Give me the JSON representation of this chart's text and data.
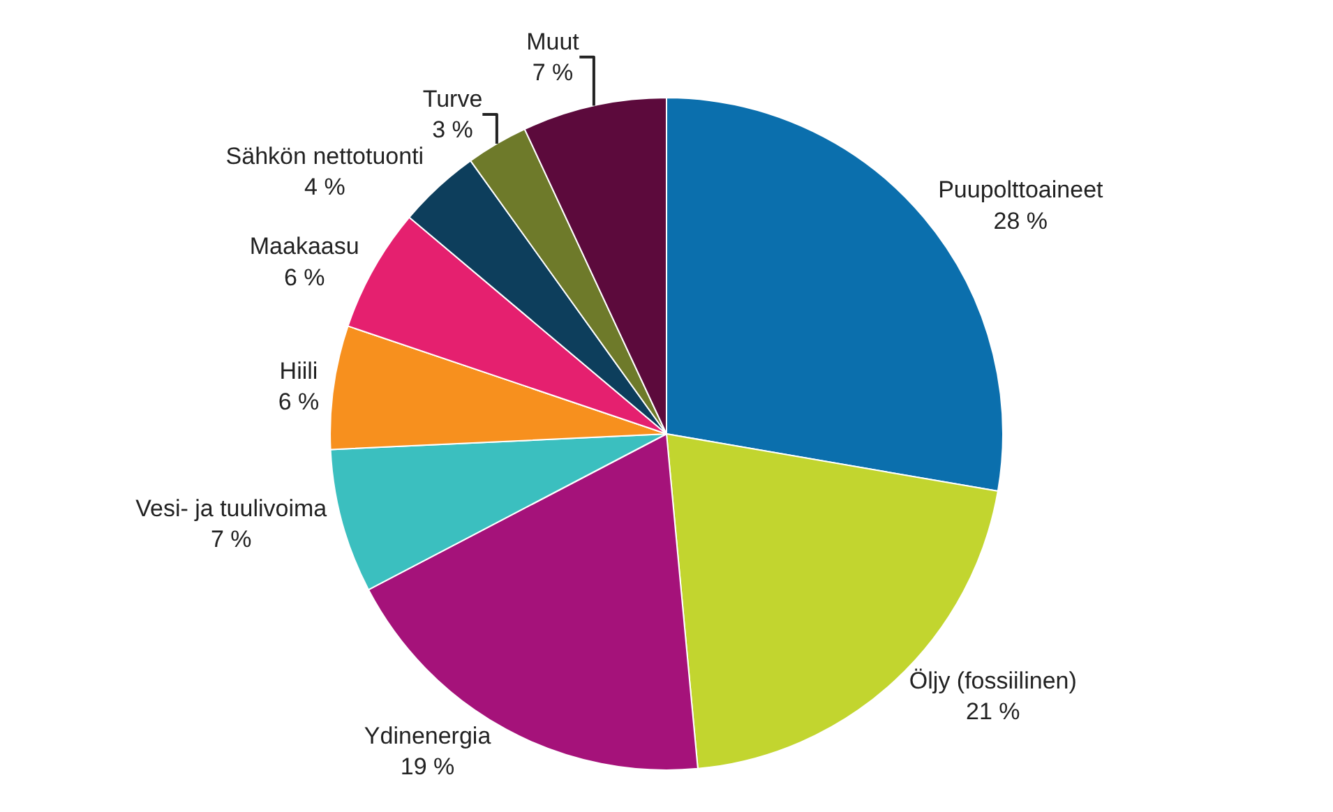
{
  "chart_data": {
    "type": "pie",
    "categories": [
      "Puupolttoaineet",
      "Öljy (fossiilinen)",
      "Ydinenergia",
      "Vesi- ja tuulivoima",
      "Hiili",
      "Maakaasu",
      "Sähkön nettotuonti",
      "Turve",
      "Muut"
    ],
    "values": [
      28,
      21,
      19,
      7,
      6,
      6,
      4,
      3,
      7
    ],
    "value_labels": [
      "28 %",
      "21 %",
      "19 %",
      "7 %",
      "6 %",
      "6 %",
      "4 %",
      "3 %",
      "7 %"
    ],
    "colors": [
      "#0b6fad",
      "#c2d52f",
      "#a5127a",
      "#3bbfbf",
      "#f7901e",
      "#e5206f",
      "#0d3e5c",
      "#6e7a2a",
      "#5c0a3c"
    ],
    "legend": false
  }
}
